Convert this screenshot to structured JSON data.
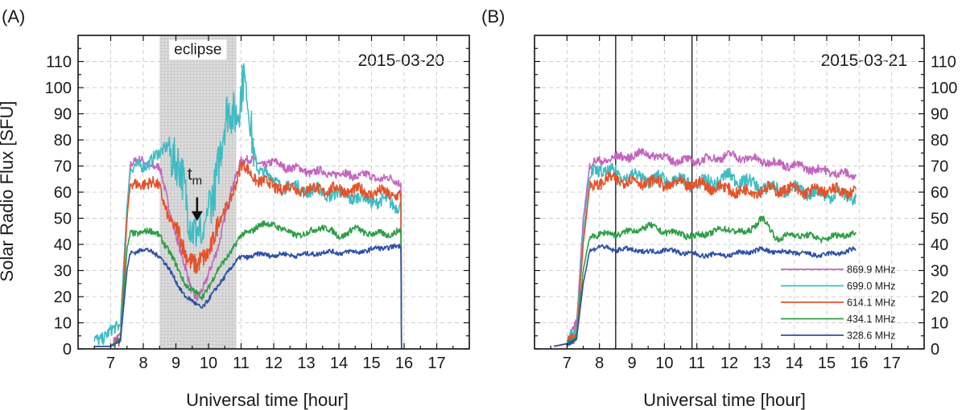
{
  "chart_data": [
    {
      "type": "line",
      "panel": "(A)",
      "annotation": "2015-03-20",
      "xlabel": "Universal time [hour]",
      "ylabel": "Solar Radio Flux [SFU]",
      "xlim": [
        6.0,
        18.0
      ],
      "ylim": [
        0,
        120
      ],
      "xticks": [
        7,
        8,
        9,
        10,
        11,
        12,
        13,
        14,
        15,
        16,
        17
      ],
      "yticks": [
        0,
        10,
        20,
        30,
        40,
        50,
        60,
        70,
        80,
        90,
        100,
        110
      ],
      "grid": true,
      "shaded_region": {
        "label": "eclipse",
        "x_range": [
          8.5,
          10.85
        ]
      },
      "marker": {
        "label": "t",
        "subscript": "m",
        "x": 9.65,
        "y_from": 58,
        "y_to": 49
      },
      "colors": {
        "869.9 MHz": "#c266bf",
        "699.0 MHz": "#3fbcc2",
        "614.1 MHz": "#e5522a",
        "434.1 MHz": "#2e9e47",
        "328.6 MHz": "#2d4fa6"
      },
      "series": [
        {
          "name": "869.9 MHz",
          "x": [
            6.5,
            7.0,
            7.3,
            7.5,
            7.6,
            8.0,
            8.5,
            8.8,
            9.2,
            9.5,
            9.65,
            9.9,
            10.3,
            10.7,
            11.0,
            11.5,
            12.0,
            13.0,
            14.0,
            15.0,
            15.9,
            15.92
          ],
          "y": [
            1,
            1,
            5,
            50,
            71,
            72,
            69,
            54,
            34,
            22,
            20,
            24,
            40,
            60,
            73,
            71,
            71,
            68,
            67,
            66,
            64,
            0
          ]
        },
        {
          "name": "699.0 MHz",
          "x": [
            6.5,
            6.8,
            7.0,
            7.2,
            7.3,
            7.5,
            7.6,
            7.9,
            8.2,
            8.5,
            8.8,
            9.0,
            9.3,
            9.5,
            9.65,
            9.8,
            10.0,
            10.3,
            10.6,
            10.9,
            11.1,
            11.3,
            11.5,
            11.7,
            12.0,
            12.5,
            13.0,
            13.5,
            14.0,
            14.5,
            15.0,
            15.5,
            15.9,
            15.92
          ],
          "y": [
            4,
            5,
            6,
            8,
            10,
            55,
            68,
            70,
            72,
            74,
            80,
            70,
            58,
            50,
            46,
            38,
            55,
            72,
            88,
            95,
            105,
            80,
            70,
            68,
            64,
            62,
            61,
            60,
            59,
            58,
            57,
            56,
            55,
            0
          ]
        },
        {
          "name": "614.1 MHz",
          "x": [
            6.5,
            7.0,
            7.3,
            7.5,
            7.6,
            8.0,
            8.5,
            8.8,
            9.2,
            9.5,
            9.65,
            9.9,
            10.2,
            10.6,
            11.0,
            11.5,
            12.0,
            13.0,
            14.0,
            15.0,
            15.9,
            15.92
          ],
          "y": [
            1,
            1,
            4,
            50,
            62,
            64,
            62,
            50,
            40,
            34,
            30,
            35,
            45,
            55,
            70,
            65,
            62,
            61,
            61,
            60,
            59,
            0
          ]
        },
        {
          "name": "434.1 MHz",
          "x": [
            6.5,
            7.0,
            7.3,
            7.5,
            7.6,
            8.0,
            8.5,
            9.0,
            9.3,
            9.6,
            9.8,
            10.2,
            10.6,
            11.0,
            11.5,
            12.0,
            12.5,
            13.0,
            13.5,
            14.0,
            14.5,
            15.0,
            15.5,
            15.9,
            15.92
          ],
          "y": [
            1,
            1,
            4,
            38,
            44,
            45,
            44,
            32,
            25,
            21,
            20,
            28,
            36,
            43,
            47,
            48,
            44,
            44,
            47,
            43,
            46,
            44,
            44,
            45,
            0
          ]
        },
        {
          "name": "328.6 MHz",
          "x": [
            6.5,
            7.0,
            7.3,
            7.5,
            7.6,
            8.0,
            8.5,
            9.0,
            9.3,
            9.6,
            9.8,
            10.2,
            10.6,
            11.0,
            11.5,
            12.0,
            12.5,
            13.0,
            13.5,
            14.0,
            14.5,
            15.0,
            15.5,
            15.9,
            15.92
          ],
          "y": [
            1,
            1,
            3,
            30,
            37,
            38,
            36,
            26,
            20,
            17,
            16,
            22,
            30,
            35,
            36,
            36,
            36,
            36,
            37,
            37,
            37,
            38,
            39,
            39,
            0
          ]
        }
      ]
    },
    {
      "type": "line",
      "panel": "(B)",
      "annotation": "2015-03-21",
      "xlabel": "Universal time [hour]",
      "ylabel": "",
      "xlim": [
        6.0,
        18.0
      ],
      "ylim": [
        0,
        120
      ],
      "xticks": [
        7,
        8,
        9,
        10,
        11,
        12,
        13,
        14,
        15,
        16,
        17
      ],
      "yticks": [
        0,
        10,
        20,
        30,
        40,
        50,
        60,
        70,
        80,
        90,
        100,
        110
      ],
      "grid": true,
      "vertical_lines": [
        8.5,
        10.85
      ],
      "legend": {
        "placement": "bottom-right",
        "entries": [
          "869.9 MHz",
          "699.0 MHz",
          "614.1 MHz",
          "434.1 MHz",
          "328.6 MHz"
        ]
      },
      "colors": {
        "869.9 MHz": "#c266bf",
        "699.0 MHz": "#3fbcc2",
        "614.1 MHz": "#e5522a",
        "434.1 MHz": "#2e9e47",
        "328.6 MHz": "#2d4fa6"
      },
      "series": [
        {
          "name": "869.9 MHz",
          "x": [
            6.6,
            7.0,
            7.3,
            7.5,
            7.7,
            8.0,
            8.5,
            9.0,
            9.5,
            10.0,
            10.5,
            11.0,
            11.5,
            12.0,
            12.5,
            13.0,
            13.5,
            14.0,
            14.5,
            15.0,
            15.5,
            15.9
          ],
          "y": [
            1,
            2,
            10,
            50,
            70,
            72,
            73,
            74,
            75,
            73,
            72,
            72,
            73,
            74,
            73,
            72,
            71,
            70,
            69,
            68,
            67,
            66
          ]
        },
        {
          "name": "699.0 MHz",
          "x": [
            6.6,
            7.0,
            7.3,
            7.5,
            7.7,
            8.0,
            8.5,
            9.0,
            9.5,
            10.0,
            10.5,
            11.0,
            11.5,
            12.0,
            12.5,
            13.0,
            13.5,
            14.0,
            14.5,
            15.0,
            15.5,
            15.9
          ],
          "y": [
            1,
            2,
            8,
            45,
            66,
            69,
            67,
            66,
            65,
            65,
            64,
            63,
            64,
            66,
            64,
            62,
            61,
            61,
            60,
            59,
            59,
            58
          ]
        },
        {
          "name": "614.1 MHz",
          "x": [
            6.6,
            7.0,
            7.3,
            7.5,
            7.7,
            8.0,
            8.5,
            9.0,
            9.5,
            10.0,
            10.5,
            11.0,
            11.5,
            12.0,
            12.5,
            13.0,
            13.5,
            14.0,
            14.5,
            15.0,
            15.5,
            15.9
          ],
          "y": [
            1,
            2,
            6,
            40,
            62,
            64,
            65,
            64,
            64,
            63,
            63,
            63,
            62,
            61,
            60,
            61,
            61,
            61,
            60,
            61,
            60,
            61
          ]
        },
        {
          "name": "434.1 MHz",
          "x": [
            6.6,
            7.0,
            7.3,
            7.5,
            7.7,
            8.0,
            8.5,
            9.0,
            9.5,
            10.0,
            10.5,
            11.0,
            11.5,
            12.0,
            12.5,
            13.0,
            13.5,
            14.0,
            14.5,
            15.0,
            15.5,
            15.9
          ],
          "y": [
            1,
            2,
            5,
            30,
            43,
            44,
            44,
            45,
            47,
            45,
            44,
            43,
            45,
            46,
            44,
            50,
            42,
            44,
            43,
            42,
            44,
            44
          ]
        },
        {
          "name": "328.6 MHz",
          "x": [
            6.6,
            7.0,
            7.3,
            7.5,
            7.7,
            8.0,
            8.5,
            9.0,
            9.5,
            10.0,
            10.5,
            11.0,
            11.5,
            12.0,
            12.5,
            13.0,
            13.5,
            14.0,
            14.5,
            15.0,
            15.5,
            15.9
          ],
          "y": [
            1,
            2,
            4,
            25,
            38,
            39,
            38,
            38,
            37,
            38,
            37,
            36,
            36,
            36,
            37,
            38,
            37,
            37,
            36,
            36,
            37,
            38
          ]
        }
      ]
    }
  ]
}
